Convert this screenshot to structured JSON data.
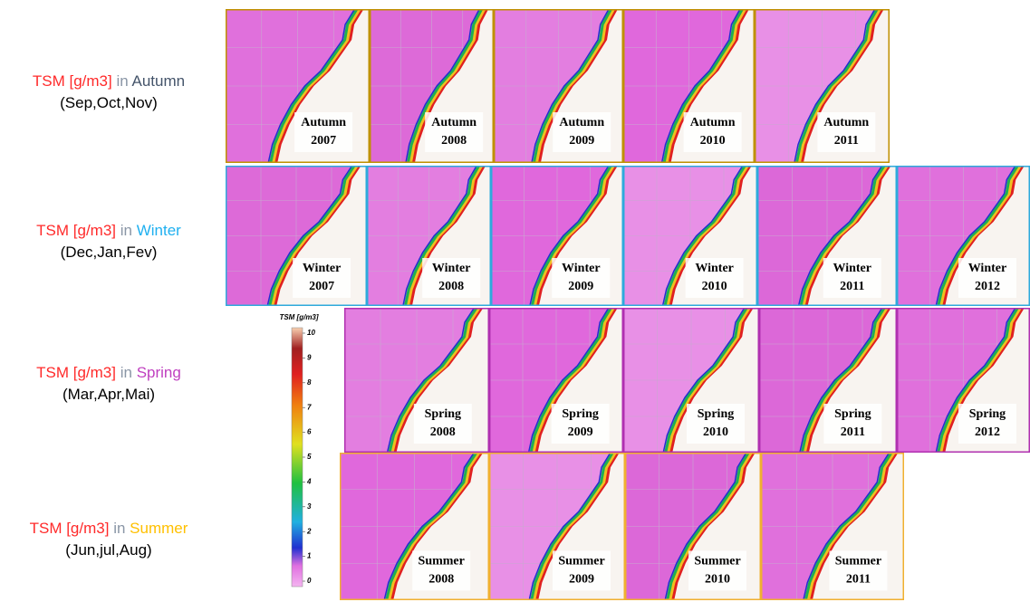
{
  "rows": [
    {
      "prefix": "TSM [g/m3]",
      "conj": "in",
      "season": "Autumn",
      "months": "(Sep,Oct,Nov)",
      "panels": [
        {
          "label": "Autumn",
          "year": "2007"
        },
        {
          "label": "Autumn",
          "year": "2008"
        },
        {
          "label": "Autumn",
          "year": "2009"
        },
        {
          "label": "Autumn",
          "year": "2010"
        },
        {
          "label": "Autumn",
          "year": "2011"
        }
      ]
    },
    {
      "prefix": "TSM [g/m3]",
      "conj": "in",
      "season": "Winter",
      "months": "(Dec,Jan,Fev)",
      "panels": [
        {
          "label": "Winter",
          "year": "2007"
        },
        {
          "label": "Winter",
          "year": "2008"
        },
        {
          "label": "Winter",
          "year": "2009"
        },
        {
          "label": "Winter",
          "year": "2010"
        },
        {
          "label": "Winter",
          "year": "2011"
        },
        {
          "label": "Winter",
          "year": "2012"
        }
      ]
    },
    {
      "prefix": "TSM [g/m3]",
      "conj": "in",
      "season": "Spring",
      "months": "(Mar,Apr,Mai)",
      "panels": [
        {
          "label": "Spring",
          "year": "2008"
        },
        {
          "label": "Spring",
          "year": "2009"
        },
        {
          "label": "Spring",
          "year": "2010"
        },
        {
          "label": "Spring",
          "year": "2011"
        },
        {
          "label": "Spring",
          "year": "2012"
        }
      ]
    },
    {
      "prefix": "TSM [g/m3]",
      "conj": "in",
      "season": "Summer",
      "months": "(Jun,jul,Aug)",
      "panels": [
        {
          "label": "Summer",
          "year": "2008"
        },
        {
          "label": "Summer",
          "year": "2009"
        },
        {
          "label": "Summer",
          "year": "2010"
        },
        {
          "label": "Summer",
          "year": "2011"
        }
      ]
    }
  ],
  "colorbar": {
    "title": "TSM [g/m3]",
    "ticks": [
      0,
      1,
      2,
      3,
      4,
      5,
      6,
      7,
      8,
      9,
      10
    ]
  }
}
